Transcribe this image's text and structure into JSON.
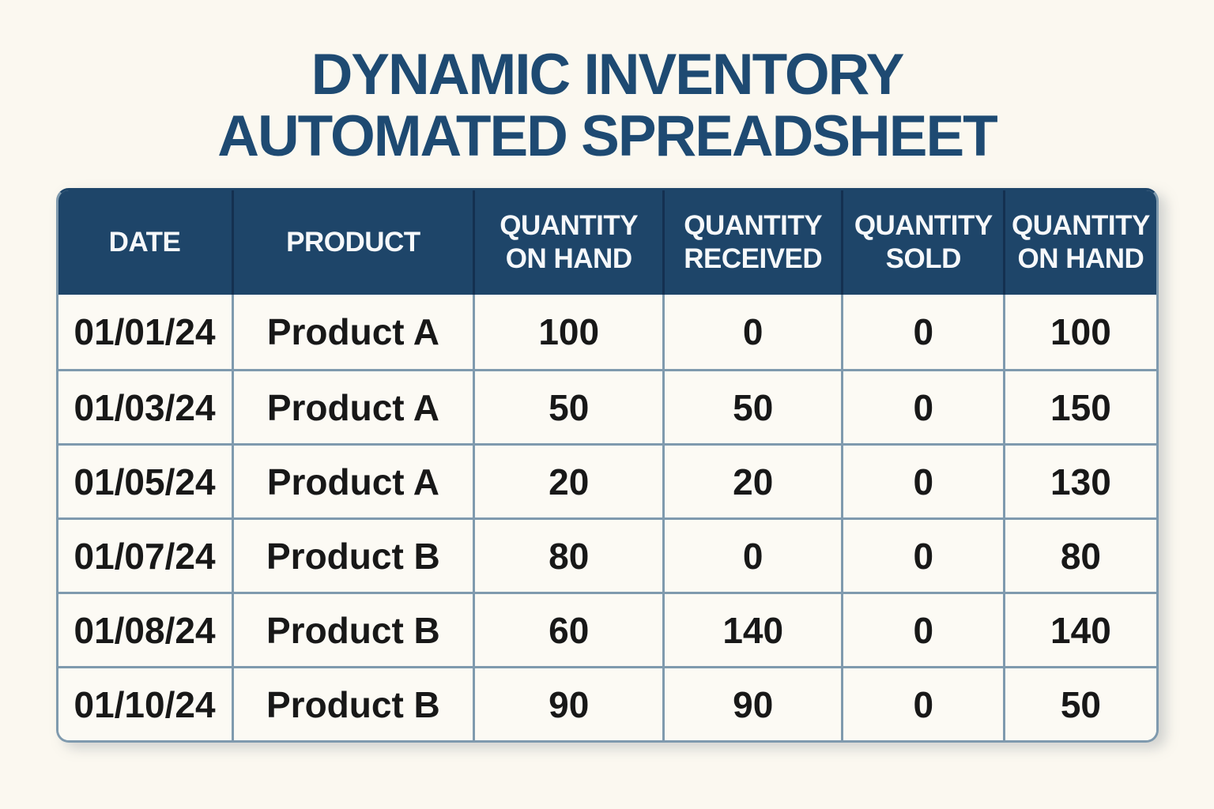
{
  "title": {
    "line1": "DYNAMIC INVENTORY",
    "line2": "AUTOMATED SPREADSHEET"
  },
  "colors": {
    "page_background": "#fbf8f0",
    "title_text": "#1e4a72",
    "header_background": "#1e4569",
    "header_text": "#f6f8fa",
    "header_divider": "#143050",
    "cell_background": "#fcfaf4",
    "cell_border": "#7f9aae",
    "cell_text": "#181818"
  },
  "chart_data": {
    "type": "table",
    "title": "DYNAMIC INVENTORY AUTOMATED SPREADSHEET",
    "columns": [
      "DATE",
      "PRODUCT",
      "QUANTITY ON HAND",
      "QUANTITY RECEIVED",
      "QUANTITY SOLD",
      "QUANTITY ON HAND"
    ],
    "rows": [
      [
        "01/01/24",
        "Product A",
        "100",
        "0",
        "0",
        "100"
      ],
      [
        "01/03/24",
        "Product A",
        "50",
        "50",
        "0",
        "150"
      ],
      [
        "01/05/24",
        "Product A",
        "20",
        "20",
        "0",
        "130"
      ],
      [
        "01/07/24",
        "Product B",
        "80",
        "0",
        "0",
        "80"
      ],
      [
        "01/08/24",
        "Product B",
        "60",
        "140",
        "0",
        "140"
      ],
      [
        "01/10/24",
        "Product B",
        "90",
        "90",
        "0",
        "50"
      ]
    ]
  }
}
